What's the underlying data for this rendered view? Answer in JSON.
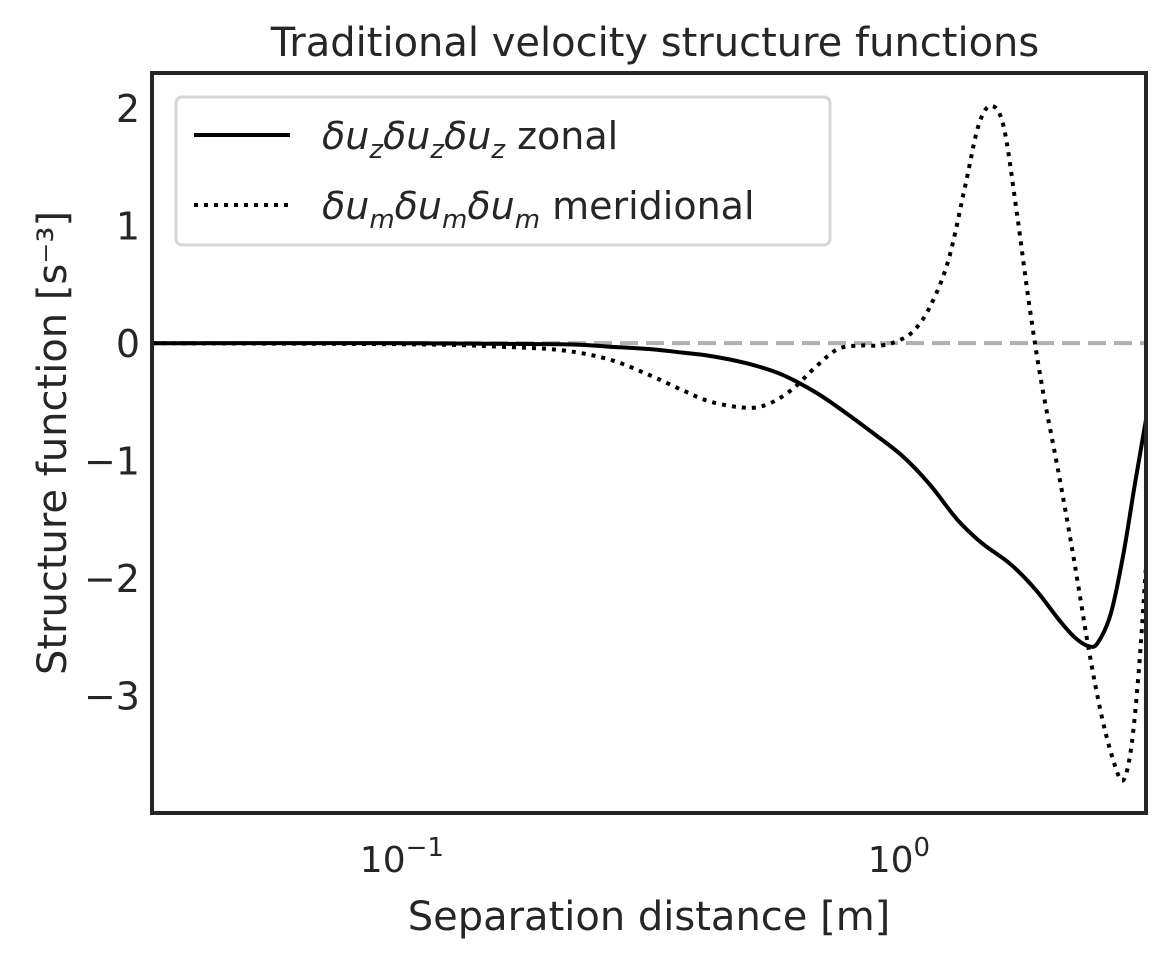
{
  "chart_data": {
    "type": "line",
    "title": "Traditional velocity structure functions",
    "xlabel": "Separation distance [m]",
    "ylabel": "Structure function [s⁻³]",
    "x_scale": "log",
    "xlim": [
      0.03,
      3.0
    ],
    "ylim": [
      -4.0,
      2.3
    ],
    "grid": false,
    "legend_position": "top-left",
    "x_ticks": [
      {
        "value": 0.1,
        "base": "10",
        "exp": "−1"
      },
      {
        "value": 1.0,
        "base": "10",
        "exp": "0"
      }
    ],
    "y_ticks": [
      {
        "value": 2,
        "label": "2"
      },
      {
        "value": 1,
        "label": "1"
      },
      {
        "value": 0,
        "label": "0"
      },
      {
        "value": -1,
        "label": "−1"
      },
      {
        "value": -2,
        "label": "−2"
      },
      {
        "value": -3,
        "label": "−3"
      }
    ],
    "reference_line": {
      "y": 0,
      "style": "dashed",
      "color": "#b0b0b0"
    },
    "series": [
      {
        "name": "δu_z δu_z δu_z zonal",
        "legend_parts": [
          "δu",
          "z",
          "δu",
          "z",
          "δu",
          "z",
          " zonal"
        ],
        "style": "solid",
        "color": "#000000",
        "points": [
          [
            0.03,
            0.0
          ],
          [
            0.1,
            0.0
          ],
          [
            0.2,
            -0.01
          ],
          [
            0.25,
            -0.03
          ],
          [
            0.3,
            -0.05
          ],
          [
            0.35,
            -0.08
          ],
          [
            0.4,
            -0.11
          ],
          [
            0.47,
            -0.17
          ],
          [
            0.55,
            -0.26
          ],
          [
            0.65,
            -0.42
          ],
          [
            0.75,
            -0.6
          ],
          [
            0.85,
            -0.77
          ],
          [
            0.97,
            -0.96
          ],
          [
            1.1,
            -1.2
          ],
          [
            1.25,
            -1.5
          ],
          [
            1.4,
            -1.7
          ],
          [
            1.6,
            -1.88
          ],
          [
            1.8,
            -2.1
          ],
          [
            2.0,
            -2.35
          ],
          [
            2.15,
            -2.5
          ],
          [
            2.3,
            -2.58
          ],
          [
            2.4,
            -2.55
          ],
          [
            2.55,
            -2.3
          ],
          [
            2.7,
            -1.8
          ],
          [
            2.85,
            -1.2
          ],
          [
            3.0,
            -0.65
          ]
        ]
      },
      {
        "name": "δu_m δu_m δu_m meridional",
        "legend_parts": [
          "δu",
          "m",
          "δu",
          "m",
          "δu",
          "m",
          " meridional"
        ],
        "style": "dotted",
        "color": "#000000",
        "points": [
          [
            0.03,
            0.0
          ],
          [
            0.1,
            -0.01
          ],
          [
            0.15,
            -0.03
          ],
          [
            0.2,
            -0.06
          ],
          [
            0.25,
            -0.14
          ],
          [
            0.3,
            -0.27
          ],
          [
            0.35,
            -0.4
          ],
          [
            0.4,
            -0.5
          ],
          [
            0.47,
            -0.55
          ],
          [
            0.52,
            -0.52
          ],
          [
            0.58,
            -0.4
          ],
          [
            0.65,
            -0.2
          ],
          [
            0.72,
            -0.05
          ],
          [
            0.8,
            -0.02
          ],
          [
            0.88,
            -0.02
          ],
          [
            0.95,
            0.02
          ],
          [
            1.02,
            0.1
          ],
          [
            1.1,
            0.3
          ],
          [
            1.2,
            0.7
          ],
          [
            1.3,
            1.35
          ],
          [
            1.38,
            1.85
          ],
          [
            1.46,
            2.02
          ],
          [
            1.55,
            1.85
          ],
          [
            1.65,
            1.1
          ],
          [
            1.75,
            0.3
          ],
          [
            1.85,
            -0.35
          ],
          [
            2.0,
            -1.1
          ],
          [
            2.15,
            -1.85
          ],
          [
            2.3,
            -2.6
          ],
          [
            2.45,
            -3.2
          ],
          [
            2.6,
            -3.6
          ],
          [
            2.7,
            -3.72
          ],
          [
            2.8,
            -3.45
          ],
          [
            2.9,
            -2.8
          ],
          [
            3.0,
            -1.9
          ]
        ]
      }
    ]
  }
}
